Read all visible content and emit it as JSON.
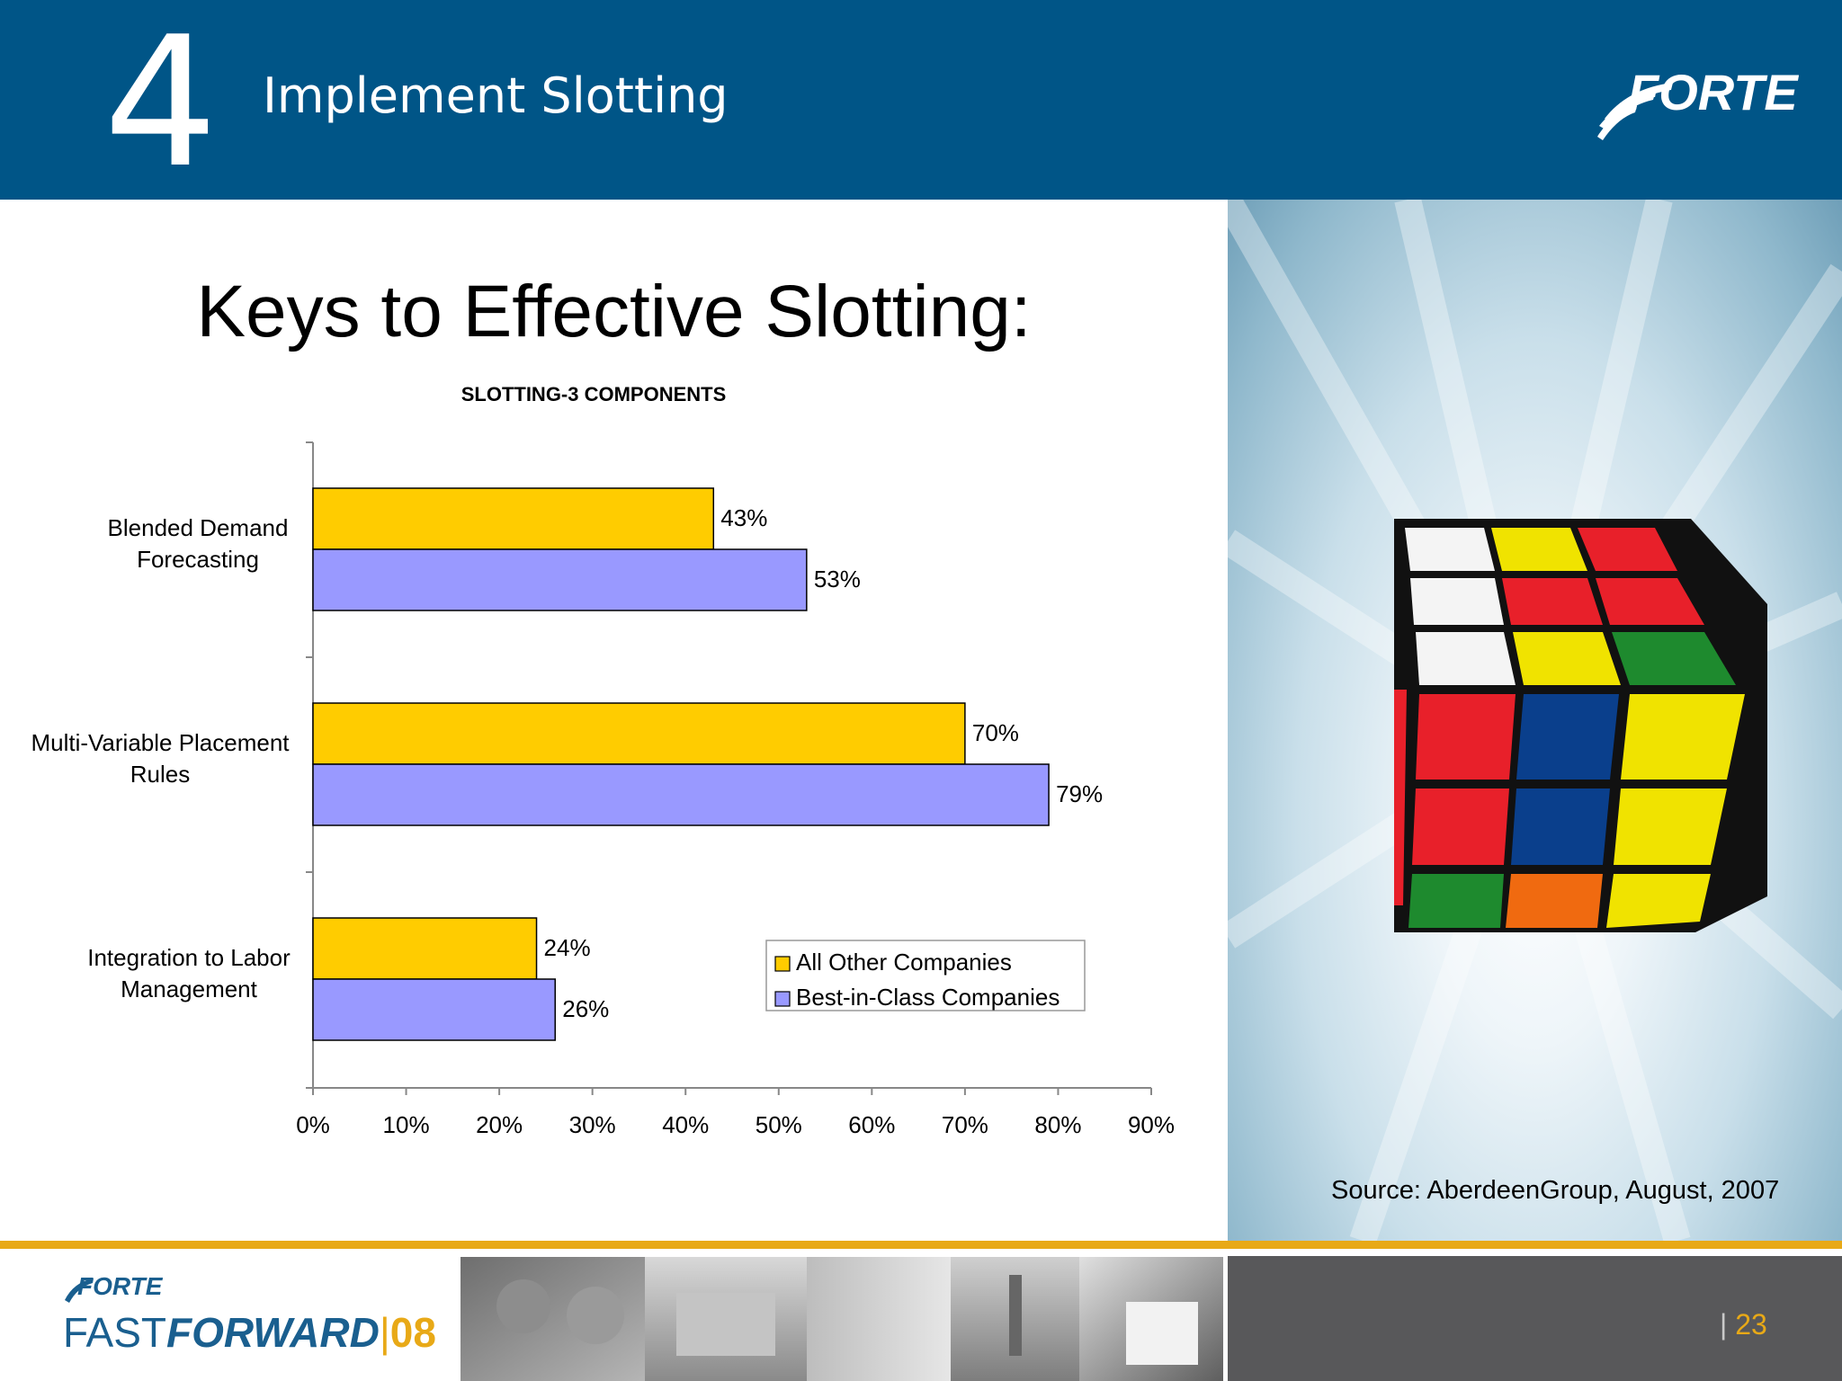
{
  "header": {
    "section_number": "4",
    "section_title": "Implement Slotting",
    "logo_text": "FORTE"
  },
  "slide": {
    "title": "Keys to Effective Slotting:",
    "source": "Source: AberdeenGroup, August, 2007",
    "page_number": "23"
  },
  "footer": {
    "brand_small": "FORTE",
    "brand_fast": "FAST",
    "brand_forward": "FORWARD",
    "brand_year": "08"
  },
  "colors": {
    "header_bg": "#005587",
    "all_other": "#ffcc00",
    "best_in_class": "#9999ff",
    "accent_gold": "#e8a917"
  },
  "chart_data": {
    "type": "bar",
    "orientation": "horizontal",
    "title": "SLOTTING-3 COMPONENTS",
    "categories": [
      "Blended Demand Forecasting",
      "Multi-Variable Placement Rules",
      "Integration to Labor Management"
    ],
    "category_label_lines": [
      [
        "Blended Demand",
        "Forecasting"
      ],
      [
        "Multi-Variable Placement",
        "Rules"
      ],
      [
        "Integration to Labor",
        "Management"
      ]
    ],
    "series": [
      {
        "name": "All Other Companies",
        "values": [
          43,
          70,
          24
        ],
        "labels": [
          "43%",
          "70%",
          "24%"
        ],
        "color": "#ffcc00"
      },
      {
        "name": "Best-in-Class Companies",
        "values": [
          53,
          79,
          26
        ],
        "labels": [
          "53%",
          "79%",
          "26%"
        ],
        "color": "#9999ff"
      }
    ],
    "xlim": [
      0,
      90
    ],
    "x_ticks": [
      "0%",
      "10%",
      "20%",
      "30%",
      "40%",
      "50%",
      "60%",
      "70%",
      "80%",
      "90%"
    ],
    "xlabel": "",
    "ylabel": "",
    "grid": false,
    "legend": "bottom-right"
  }
}
